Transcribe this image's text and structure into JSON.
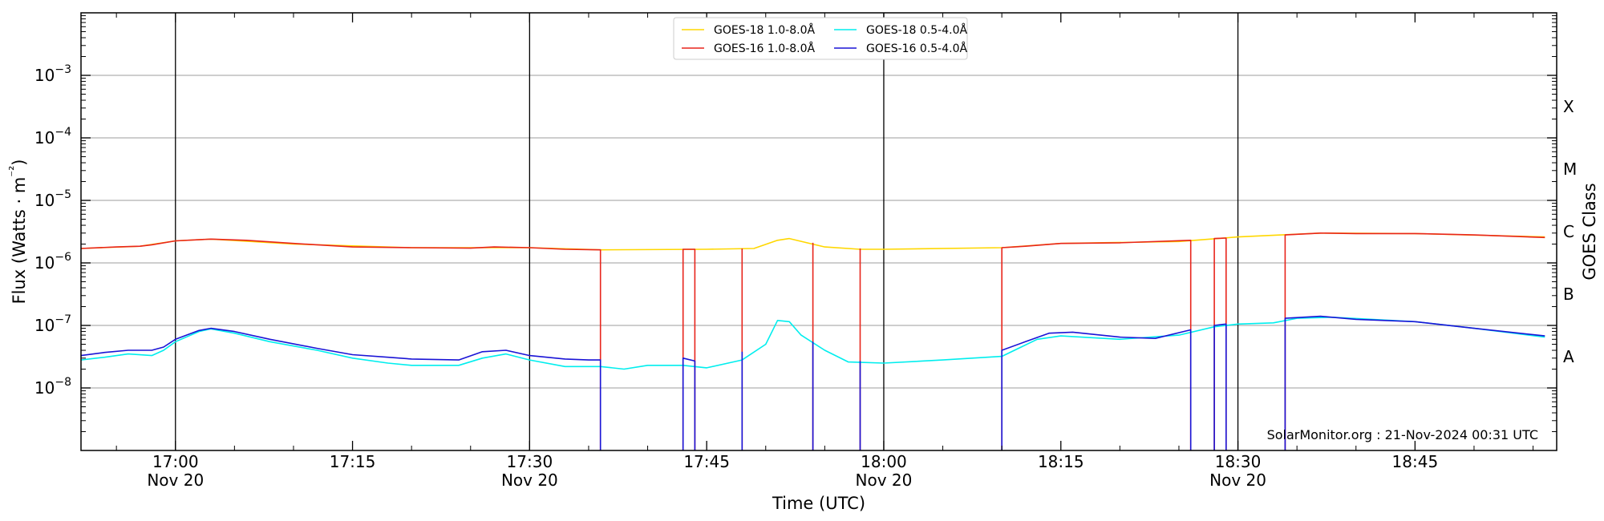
{
  "chart_data": {
    "type": "line",
    "title": "",
    "xlabel": "Time (UTC)",
    "ylabel": "Flux (Watts · m⁻²)",
    "y2label": "GOES Class",
    "yscale": "log",
    "ylim": [
      1e-09,
      0.01
    ],
    "xlim": [
      "16:52",
      "18:57"
    ],
    "y_ticks": [
      {
        "value": 1e-08,
        "base": "10",
        "exp": "−8"
      },
      {
        "value": 1e-07,
        "base": "10",
        "exp": "−7"
      },
      {
        "value": 1e-06,
        "base": "10",
        "exp": "−6"
      },
      {
        "value": 1e-05,
        "base": "10",
        "exp": "−5"
      },
      {
        "value": 0.0001,
        "base": "10",
        "exp": "−4"
      },
      {
        "value": 0.001,
        "base": "10",
        "exp": "−3"
      }
    ],
    "x_ticks": [
      {
        "time": "17:00",
        "label": "17:00",
        "sublabel": "Nov 20"
      },
      {
        "time": "17:15",
        "label": "17:15",
        "sublabel": ""
      },
      {
        "time": "17:30",
        "label": "17:30",
        "sublabel": "Nov 20"
      },
      {
        "time": "17:45",
        "label": "17:45",
        "sublabel": ""
      },
      {
        "time": "18:00",
        "label": "18:00",
        "sublabel": "Nov 20"
      },
      {
        "time": "18:15",
        "label": "18:15",
        "sublabel": ""
      },
      {
        "time": "18:30",
        "label": "18:30",
        "sublabel": "Nov 20"
      },
      {
        "time": "18:45",
        "label": "18:45",
        "sublabel": ""
      }
    ],
    "vertical_lines": [
      "17:00",
      "17:30",
      "18:00",
      "18:30"
    ],
    "grid": "horizontal",
    "classes": [
      {
        "label": "A",
        "value": 3.16e-08
      },
      {
        "label": "B",
        "value": 3.16e-07
      },
      {
        "label": "C",
        "value": 3.16e-06
      },
      {
        "label": "M",
        "value": 3.16e-05
      },
      {
        "label": "X",
        "value": 0.000316
      }
    ],
    "legend_position": "top-center",
    "annotation": "SolarMonitor.org : 21-Nov-2024 00:31 UTC",
    "series": [
      {
        "name": "GOES-18 1.0-8.0Å",
        "color": "#ffd700",
        "segments": [
          [
            [
              "16:52",
              1.7e-06
            ],
            [
              "16:57",
              1.85e-06
            ],
            [
              "17:00",
              2.25e-06
            ],
            [
              "17:03",
              2.4e-06
            ],
            [
              "17:10",
              2e-06
            ],
            [
              "17:20",
              1.75e-06
            ],
            [
              "17:30",
              1.75e-06
            ],
            [
              "17:36",
              1.62e-06
            ],
            [
              "17:45",
              1.65e-06
            ],
            [
              "17:49",
              1.7e-06
            ],
            [
              "17:51",
              2.3e-06
            ],
            [
              "17:52",
              2.45e-06
            ],
            [
              "17:55",
              1.8e-06
            ],
            [
              "17:58",
              1.65e-06
            ],
            [
              "18:00",
              1.65e-06
            ],
            [
              "18:10",
              1.75e-06
            ],
            [
              "18:15",
              2.05e-06
            ],
            [
              "18:25",
              2.2e-06
            ],
            [
              "18:30",
              2.6e-06
            ],
            [
              "18:37",
              3e-06
            ],
            [
              "18:45",
              2.95e-06
            ],
            [
              "18:56",
              2.6e-06
            ]
          ]
        ]
      },
      {
        "name": "GOES-16 1.0-8.0Å",
        "color": "#e8251c",
        "segments": [
          [
            [
              "16:52",
              1.7e-06
            ],
            [
              "16:55",
              1.8e-06
            ],
            [
              "16:57",
              1.85e-06
            ],
            [
              "16:58",
              1.95e-06
            ],
            [
              "17:00",
              2.25e-06
            ],
            [
              "17:03",
              2.4e-06
            ],
            [
              "17:06",
              2.3e-06
            ],
            [
              "17:10",
              2.05e-06
            ],
            [
              "17:15",
              1.8e-06
            ],
            [
              "17:20",
              1.75e-06
            ],
            [
              "17:25",
              1.72e-06
            ],
            [
              "17:27",
              1.8e-06
            ],
            [
              "17:30",
              1.75e-06
            ],
            [
              "17:33",
              1.65e-06
            ],
            [
              "17:36",
              1.62e-06
            ],
            [
              "17:36",
              1e-09
            ]
          ],
          [
            [
              "17:43",
              1e-09
            ],
            [
              "17:43",
              1.65e-06
            ],
            [
              "17:44",
              1.65e-06
            ],
            [
              "17:44",
              1e-09
            ]
          ],
          [
            [
              "17:48",
              1e-09
            ],
            [
              "17:48",
              1.7e-06
            ]
          ],
          [
            [
              "17:54",
              1e-09
            ],
            [
              "17:54",
              2.1e-06
            ]
          ],
          [
            [
              "17:58",
              1e-09
            ],
            [
              "17:58",
              1.7e-06
            ]
          ],
          [
            [
              "18:10",
              1e-09
            ],
            [
              "18:10",
              1.75e-06
            ],
            [
              "18:12",
              1.85e-06
            ],
            [
              "18:15",
              2.05e-06
            ],
            [
              "18:20",
              2.1e-06
            ],
            [
              "18:26",
              2.3e-06
            ],
            [
              "18:26",
              1e-09
            ]
          ],
          [
            [
              "18:28",
              1e-09
            ],
            [
              "18:28",
              2.45e-06
            ],
            [
              "18:29",
              2.5e-06
            ],
            [
              "18:29",
              1e-09
            ]
          ],
          [
            [
              "18:34",
              1e-09
            ],
            [
              "18:34",
              2.8e-06
            ],
            [
              "18:37",
              3e-06
            ],
            [
              "18:40",
              2.95e-06
            ],
            [
              "18:45",
              2.95e-06
            ],
            [
              "18:50",
              2.8e-06
            ],
            [
              "18:56",
              2.55e-06
            ]
          ]
        ]
      },
      {
        "name": "GOES-18 0.5-4.0Å",
        "color": "#00eeee",
        "segments": [
          [
            [
              "16:52",
              2.8e-08
            ],
            [
              "16:54",
              3.1e-08
            ],
            [
              "16:56",
              3.5e-08
            ],
            [
              "16:58",
              3.3e-08
            ],
            [
              "16:59",
              4e-08
            ],
            [
              "17:00",
              5.5e-08
            ],
            [
              "17:02",
              8e-08
            ],
            [
              "17:03",
              8.8e-08
            ],
            [
              "17:05",
              7.5e-08
            ],
            [
              "17:08",
              5.5e-08
            ],
            [
              "17:12",
              4e-08
            ],
            [
              "17:15",
              3e-08
            ],
            [
              "17:18",
              2.5e-08
            ],
            [
              "17:20",
              2.3e-08
            ],
            [
              "17:24",
              2.3e-08
            ],
            [
              "17:26",
              3e-08
            ],
            [
              "17:28",
              3.5e-08
            ],
            [
              "17:30",
              2.8e-08
            ],
            [
              "17:33",
              2.2e-08
            ],
            [
              "17:36",
              2.2e-08
            ],
            [
              "17:38",
              2e-08
            ],
            [
              "17:40",
              2.3e-08
            ],
            [
              "17:43",
              2.3e-08
            ],
            [
              "17:45",
              2.1e-08
            ],
            [
              "17:48",
              2.8e-08
            ],
            [
              "17:50",
              5e-08
            ],
            [
              "17:51",
              1.2e-07
            ],
            [
              "17:52",
              1.15e-07
            ],
            [
              "17:53",
              7e-08
            ],
            [
              "17:55",
              4e-08
            ],
            [
              "17:57",
              2.6e-08
            ],
            [
              "18:00",
              2.5e-08
            ],
            [
              "18:05",
              2.8e-08
            ],
            [
              "18:10",
              3.2e-08
            ],
            [
              "18:13",
              6e-08
            ],
            [
              "18:15",
              6.8e-08
            ],
            [
              "18:20",
              6e-08
            ],
            [
              "18:25",
              7e-08
            ],
            [
              "18:28",
              9.5e-08
            ],
            [
              "18:30",
              1.05e-07
            ],
            [
              "18:33",
              1.1e-07
            ],
            [
              "18:35",
              1.3e-07
            ],
            [
              "18:38",
              1.35e-07
            ],
            [
              "18:45",
              1.15e-07
            ],
            [
              "18:50",
              9e-08
            ],
            [
              "18:56",
              6.5e-08
            ]
          ]
        ]
      },
      {
        "name": "GOES-16 0.5-4.0Å",
        "color": "#1a14d6",
        "segments": [
          [
            [
              "16:52",
              3.3e-08
            ],
            [
              "16:54",
              3.7e-08
            ],
            [
              "16:56",
              4e-08
            ],
            [
              "16:58",
              4e-08
            ],
            [
              "16:59",
              4.5e-08
            ],
            [
              "17:00",
              6e-08
            ],
            [
              "17:02",
              8.3e-08
            ],
            [
              "17:03",
              9e-08
            ],
            [
              "17:05",
              8e-08
            ],
            [
              "17:08",
              6e-08
            ],
            [
              "17:12",
              4.3e-08
            ],
            [
              "17:15",
              3.4e-08
            ],
            [
              "17:18",
              3.1e-08
            ],
            [
              "17:20",
              2.9e-08
            ],
            [
              "17:24",
              2.8e-08
            ],
            [
              "17:26",
              3.8e-08
            ],
            [
              "17:28",
              4e-08
            ],
            [
              "17:30",
              3.3e-08
            ],
            [
              "17:33",
              2.9e-08
            ],
            [
              "17:35",
              2.8e-08
            ],
            [
              "17:36",
              2.8e-08
            ],
            [
              "17:36",
              1e-09
            ]
          ],
          [
            [
              "17:43",
              1e-09
            ],
            [
              "17:43",
              3e-08
            ],
            [
              "17:44",
              2.7e-08
            ],
            [
              "17:44",
              1e-09
            ]
          ],
          [
            [
              "17:48",
              1e-09
            ],
            [
              "17:48",
              3.8e-08
            ]
          ],
          [
            [
              "17:54",
              1e-09
            ],
            [
              "17:54",
              5.5e-08
            ]
          ],
          [
            [
              "17:58",
              1e-09
            ],
            [
              "17:58",
              2.7e-08
            ]
          ],
          [
            [
              "18:10",
              1e-09
            ],
            [
              "18:10",
              4e-08
            ],
            [
              "18:12",
              5.5e-08
            ],
            [
              "18:14",
              7.5e-08
            ],
            [
              "18:16",
              7.8e-08
            ],
            [
              "18:20",
              6.5e-08
            ],
            [
              "18:23",
              6.2e-08
            ],
            [
              "18:26",
              8.5e-08
            ],
            [
              "18:26",
              1e-09
            ]
          ],
          [
            [
              "18:28",
              1e-09
            ],
            [
              "18:28",
              1e-07
            ],
            [
              "18:29",
              1.05e-07
            ],
            [
              "18:29",
              1e-09
            ]
          ],
          [
            [
              "18:34",
              1e-09
            ],
            [
              "18:34",
              1.3e-07
            ],
            [
              "18:37",
              1.4e-07
            ],
            [
              "18:40",
              1.25e-07
            ],
            [
              "18:45",
              1.15e-07
            ],
            [
              "18:50",
              9e-08
            ],
            [
              "18:56",
              6.8e-08
            ]
          ]
        ]
      }
    ]
  }
}
